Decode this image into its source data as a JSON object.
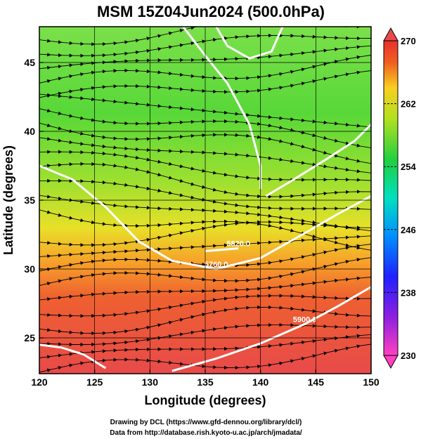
{
  "chart_data": {
    "type": "heatmap",
    "title": "MSM 15Z04Jun2024 (500.0hPa)",
    "xlabel": "Longitude (degrees)",
    "ylabel": "Latitude  (degrees)",
    "xlim": [
      120,
      150
    ],
    "ylim": [
      22.4,
      47.6
    ],
    "x_ticks": [
      "120",
      "125",
      "130",
      "135",
      "140",
      "145",
      "150"
    ],
    "y_ticks": [
      "25",
      "30",
      "35",
      "40",
      "45"
    ],
    "grid": true,
    "colorbar": {
      "min": 230,
      "max": 270,
      "ticks": [
        "270",
        "262",
        "254",
        "246",
        "238",
        "230"
      ]
    },
    "field": "temperature (K), shaded; streamlines of wind; white contours of geopotential height",
    "contours": [
      {
        "label": "5760.0",
        "lon_lat": [
          [
            120,
            37.5
          ],
          [
            123,
            36.5
          ],
          [
            126,
            34.5
          ],
          [
            129,
            32.0
          ],
          [
            132,
            30.6
          ],
          [
            136,
            30.0
          ],
          [
            140,
            30.8
          ],
          [
            144,
            32.6
          ],
          [
            147,
            34.0
          ],
          [
            150,
            35.3
          ]
        ]
      },
      {
        "label": "5820.0",
        "lon_lat": [
          [
            135,
            31.3
          ],
          [
            138,
            31.5
          ]
        ]
      },
      {
        "label": "5900.0",
        "lon_lat": [
          [
            132,
            22.6
          ],
          [
            136,
            23.5
          ],
          [
            140,
            24.6
          ],
          [
            144,
            26.0
          ],
          [
            147,
            27.3
          ],
          [
            150,
            28.7
          ]
        ]
      },
      {
        "label": "",
        "lon_lat": [
          [
            120,
            24.5
          ],
          [
            122,
            24.3
          ],
          [
            124,
            23.8
          ],
          [
            126,
            22.8
          ]
        ]
      },
      {
        "label": "",
        "lon_lat": [
          [
            133,
            47.6
          ],
          [
            135,
            45.5
          ],
          [
            137,
            43.5
          ],
          [
            139,
            40.5
          ],
          [
            140,
            37.5
          ],
          [
            140,
            35.8
          ]
        ]
      },
      {
        "label": "",
        "lon_lat": [
          [
            136,
            47.6
          ],
          [
            137,
            46.2
          ],
          [
            139,
            45.3
          ],
          [
            141,
            45.8
          ],
          [
            142,
            47.6
          ]
        ]
      },
      {
        "label": "",
        "lon_lat": [
          [
            140.5,
            35.3
          ],
          [
            143,
            36.5
          ],
          [
            146,
            38.0
          ],
          [
            148.5,
            39.3
          ],
          [
            150,
            40.5
          ]
        ]
      }
    ],
    "credits": [
      "Drawing by DCL (https://www.gfd-dennou.org/library/dcl/)",
      "Data from http://database.rish.kyoto-u.ac.jp/arch/jmadata/"
    ]
  }
}
